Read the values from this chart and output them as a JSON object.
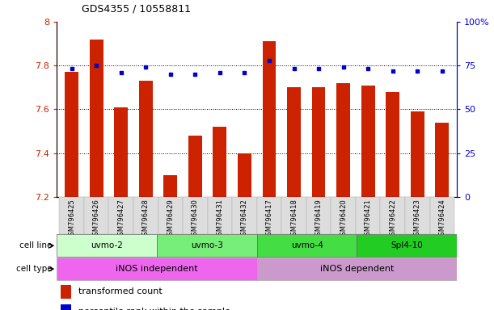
{
  "title": "GDS4355 / 10558811",
  "samples": [
    "GSM796425",
    "GSM796426",
    "GSM796427",
    "GSM796428",
    "GSM796429",
    "GSM796430",
    "GSM796431",
    "GSM796432",
    "GSM796417",
    "GSM796418",
    "GSM796419",
    "GSM796420",
    "GSM796421",
    "GSM796422",
    "GSM796423",
    "GSM796424"
  ],
  "red_values": [
    7.77,
    7.92,
    7.61,
    7.73,
    7.3,
    7.48,
    7.52,
    7.4,
    7.91,
    7.7,
    7.7,
    7.72,
    7.71,
    7.68,
    7.59,
    7.54
  ],
  "blue_values": [
    73,
    75,
    71,
    74,
    70,
    70,
    71,
    71,
    78,
    73,
    73,
    74,
    73,
    72,
    72,
    72
  ],
  "ylim_left": [
    7.2,
    8.0
  ],
  "ylim_right": [
    0,
    100
  ],
  "yticks_left": [
    7.2,
    7.4,
    7.6,
    7.8,
    8.0
  ],
  "ytick_labels_left": [
    "7.2",
    "7.4",
    "7.6",
    "7.8",
    "8"
  ],
  "yticks_right": [
    0,
    25,
    50,
    75,
    100
  ],
  "ytick_labels_right": [
    "0",
    "25",
    "50",
    "75",
    "100%"
  ],
  "cell_lines": [
    {
      "label": "uvmo-2",
      "start": 0,
      "end": 4,
      "color": "#ccffcc"
    },
    {
      "label": "uvmo-3",
      "start": 4,
      "end": 8,
      "color": "#77ee77"
    },
    {
      "label": "uvmo-4",
      "start": 8,
      "end": 12,
      "color": "#44dd44"
    },
    {
      "label": "Spl4-10",
      "start": 12,
      "end": 16,
      "color": "#22cc22"
    }
  ],
  "cell_types": [
    {
      "label": "iNOS independent",
      "start": 0,
      "end": 8,
      "color": "#ee66ee"
    },
    {
      "label": "iNOS dependent",
      "start": 8,
      "end": 16,
      "color": "#cc99cc"
    }
  ],
  "bar_color": "#cc2200",
  "dot_color": "#0000cc",
  "bg_color": "#ffffff",
  "tick_color_left": "#cc2200",
  "tick_color_right": "#0000cc",
  "label_bg": "#dddddd"
}
